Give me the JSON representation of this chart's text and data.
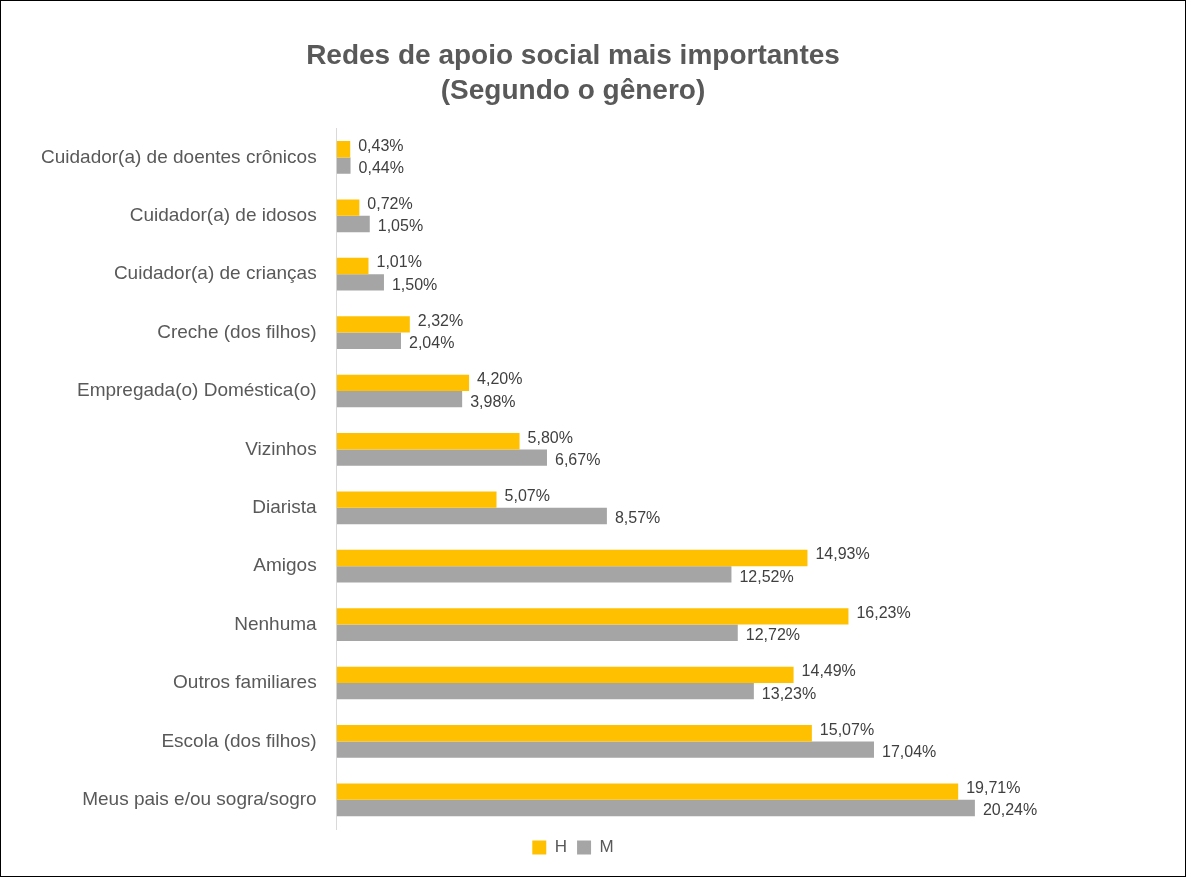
{
  "chart_data": {
    "type": "bar",
    "orientation": "horizontal",
    "title": "Redes de apoio social mais importantes",
    "subtitle": "(Segundo o gênero)",
    "categories": [
      "Cuidador(a) de doentes crônicos",
      "Cuidador(a) de idosos",
      "Cuidador(a) de crianças",
      "Creche (dos filhos)",
      "Empregada(o) Doméstica(o)",
      "Vizinhos",
      "Diarista",
      "Amigos",
      "Nenhuma",
      "Outros familiares",
      "Escola (dos filhos)",
      "Meus pais e/ou sogra/sogro"
    ],
    "series": [
      {
        "name": "H",
        "color": "#ffc000",
        "values": [
          0.43,
          0.72,
          1.01,
          2.32,
          4.2,
          5.8,
          5.07,
          14.93,
          16.23,
          14.49,
          15.07,
          19.71
        ],
        "value_labels": [
          "0,43%",
          "0,72%",
          "1,01%",
          "2,32%",
          "4,20%",
          "5,80%",
          "5,07%",
          "14,93%",
          "16,23%",
          "14,49%",
          "15,07%",
          "19,71%"
        ]
      },
      {
        "name": "M",
        "color": "#a5a5a5",
        "values": [
          0.44,
          1.05,
          1.5,
          2.04,
          3.98,
          6.67,
          8.57,
          12.52,
          12.72,
          13.23,
          17.04,
          20.24
        ],
        "value_labels": [
          "0,44%",
          "1,05%",
          "1,50%",
          "2,04%",
          "3,98%",
          "6,67%",
          "8,57%",
          "12,52%",
          "12,72%",
          "13,23%",
          "17,04%",
          "20,24%"
        ]
      }
    ],
    "legend": "bottom",
    "tick_labels": "y"
  }
}
